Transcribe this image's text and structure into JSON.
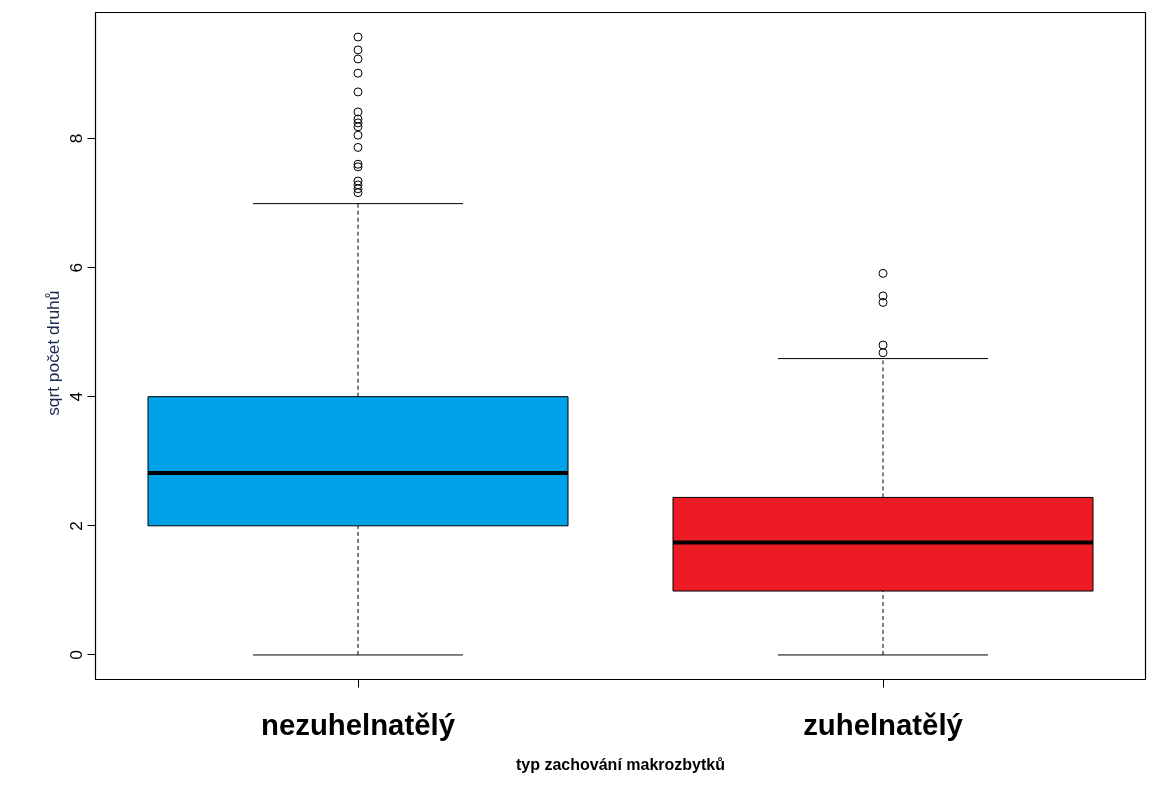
{
  "chart_data": {
    "type": "box",
    "xlabel": "typ zachování makrozbytků",
    "ylabel": "sqrt    počet druhů",
    "categories": [
      "nezuhelnatělý",
      "zuhelnatělý"
    ],
    "colors": [
      "#00a2e8",
      "#ed1c24"
    ],
    "boxes": [
      {
        "low": 0,
        "q1": 2,
        "median": 2.82,
        "q3": 4,
        "high": 6.99,
        "outliers": [
          9.57,
          9.37,
          9.23,
          9.01,
          8.72,
          8.41,
          8.3,
          8.24,
          8.18,
          8.05,
          7.86,
          7.6,
          7.56,
          7.34,
          7.28,
          7.22,
          7.16
        ]
      },
      {
        "low": 0,
        "q1": 0.99,
        "median": 1.74,
        "q3": 2.44,
        "high": 4.59,
        "outliers": [
          5.91,
          5.56,
          5.46,
          4.8,
          4.68
        ]
      }
    ],
    "ylim": [
      -0.38,
      9.95
    ],
    "yticks": [
      0,
      2,
      4,
      6,
      8
    ]
  }
}
